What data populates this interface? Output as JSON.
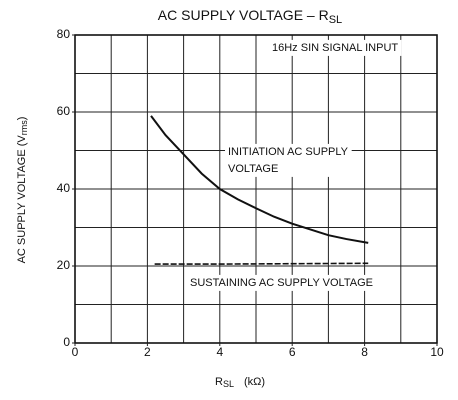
{
  "chart_data": {
    "type": "line",
    "title": [
      "AC SUPPLY VOLTAGE – R",
      "SL"
    ],
    "x_label": [
      "R",
      "SL",
      "(kΩ)"
    ],
    "y_label": [
      "AC SUPPLY VOLTAGE (V",
      "rms",
      ")"
    ],
    "xlim": [
      0,
      10
    ],
    "ylim": [
      0,
      80
    ],
    "xticks": [
      0,
      2,
      4,
      6,
      8,
      10
    ],
    "yticks": [
      0,
      20,
      40,
      60,
      80
    ],
    "xgrid": [
      1,
      2,
      3,
      4,
      5,
      6,
      7,
      8,
      9
    ],
    "ygrid": [
      10,
      20,
      30,
      40,
      50,
      60,
      70
    ],
    "grid": true,
    "series": [
      {
        "name": "INITIATION AC SUPPLY VOLTAGE",
        "color": "#111",
        "dashed": false,
        "x": [
          2.1,
          2.5,
          3,
          3.5,
          4,
          4.5,
          5,
          5.5,
          6,
          6.5,
          7,
          7.5,
          8.1
        ],
        "values": [
          59,
          54,
          49,
          44,
          40,
          37.3,
          35,
          32.8,
          31,
          29.5,
          28,
          27,
          26
        ]
      },
      {
        "name": "SUSTAINING AC SUPPLY VOLTAGE",
        "color": "#111",
        "dashed": true,
        "x": [
          2.2,
          4,
          6,
          8.1
        ],
        "values": [
          20.5,
          20.5,
          20.6,
          20.7
        ]
      }
    ],
    "annotations": [
      {
        "lines": [
          "16Hz SIN SIGNAL INPUT"
        ]
      },
      {
        "lines": [
          "INITIATION AC SUPPLY",
          "VOLTAGE"
        ]
      },
      {
        "lines": [
          "SUSTAINING AC SUPPLY VOLTAGE"
        ]
      }
    ]
  }
}
